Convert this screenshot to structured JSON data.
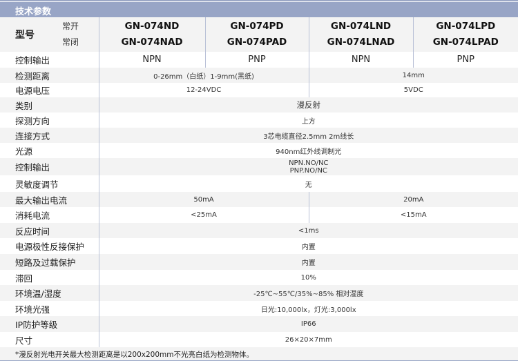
{
  "header": {
    "title": "技术参数"
  },
  "model_row": {
    "label": "型号",
    "no_label": "常开",
    "nc_label": "常闭",
    "models": [
      {
        "no": "GN-074ND",
        "nc": "GN-074NAD"
      },
      {
        "no": "GN-074PD",
        "nc": "GN-074PAD"
      },
      {
        "no": "GN-074LND",
        "nc": "GN-074LNAD"
      },
      {
        "no": "GN-074LPD",
        "nc": "GN-074LPAD"
      }
    ]
  },
  "rows": {
    "output_type": {
      "label": "控制输出",
      "values": [
        "NPN",
        "PNP",
        "NPN",
        "PNP"
      ]
    },
    "distance": {
      "label": "检测距离",
      "values": [
        "0-26mm（白纸）1-9mm(黑纸)",
        "14mm"
      ]
    },
    "voltage": {
      "label": "电源电压",
      "values": [
        "12-24VDC",
        "5VDC"
      ]
    },
    "category": {
      "label": "类别",
      "value": "漫反射"
    },
    "direction": {
      "label": "探测方向",
      "value": "上方"
    },
    "connection": {
      "label": "连接方式",
      "value": "3芯电缆直径2.5mm 2m线长"
    },
    "light_source": {
      "label": "光源",
      "value": "940nm红外线调制光"
    },
    "control_output": {
      "label": "控制输出",
      "value1": "NPN.NO/NC",
      "value2": "PNP.NO/NC"
    },
    "sensitivity": {
      "label": "灵敏度调节",
      "value": "无"
    },
    "max_current": {
      "label": "最大输出电流",
      "values": [
        "50mA",
        "20mA"
      ]
    },
    "consumption": {
      "label": "消耗电流",
      "values": [
        "<25mA",
        "<15mA"
      ]
    },
    "response": {
      "label": "反应时间",
      "value": "<1ms"
    },
    "polarity": {
      "label": "电源极性反接保护",
      "value": "内置"
    },
    "short_circuit": {
      "label": "短路及过载保护",
      "value": "内置"
    },
    "hysteresis": {
      "label": "滞回",
      "value": "10%"
    },
    "environment": {
      "label": "环境温/湿度",
      "value": "-25℃~55℃/35%~85% 相对湿度"
    },
    "ambient_light": {
      "label": "环境光强",
      "value": "日光:10,000lx，灯光:3,000lx"
    },
    "ip": {
      "label": "IP防护等级",
      "value": "IP66"
    },
    "size": {
      "label": "尺寸",
      "value": "26×20×7mm"
    }
  },
  "footnote": "*漫反射光电开关最大检测距离是以200x200mm不光亮白纸为检测物体。",
  "colors": {
    "header": "#98a5c6",
    "stripe": "#f3f3f3",
    "divider": "#b8c0d6"
  }
}
